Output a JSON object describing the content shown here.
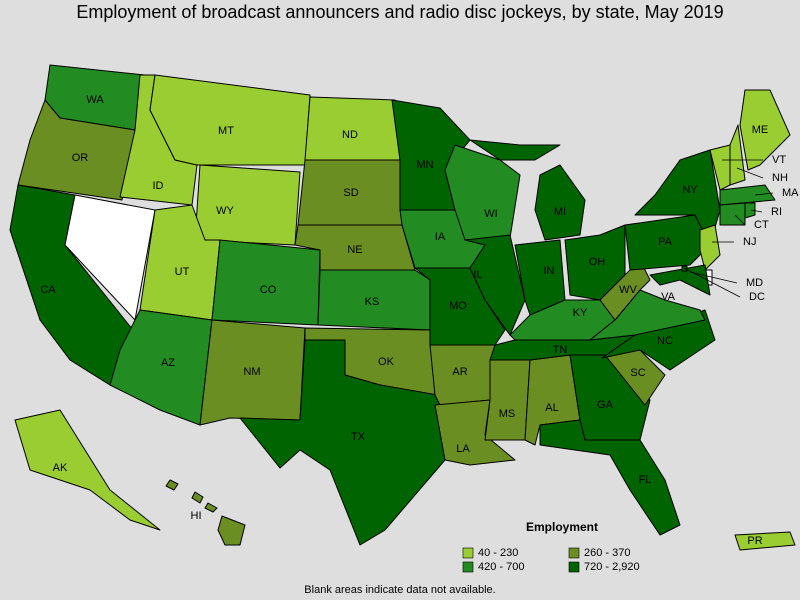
{
  "title": "Employment of broadcast announcers and radio disc jockeys, by state, May 2019",
  "legend": {
    "title": "Employment",
    "items": [
      {
        "label": "40 - 230",
        "color": "#9acd32"
      },
      {
        "label": "260 - 370",
        "color": "#6b8e23"
      },
      {
        "label": "420 - 700",
        "color": "#228b22"
      },
      {
        "label": "720 - 2,920",
        "color": "#006400"
      }
    ]
  },
  "states": [
    {
      "label": "WA",
      "class": 2
    },
    {
      "label": "OR",
      "class": 1
    },
    {
      "label": "CA",
      "class": 3
    },
    {
      "class": null
    },
    {
      "label": "ID",
      "class": 0
    },
    {
      "label": "MT",
      "class": 0
    },
    {
      "label": "WY",
      "class": 0
    },
    {
      "label": "UT",
      "class": 0
    },
    {
      "label": "AZ",
      "class": 2
    },
    {
      "label": "CO",
      "class": 2
    },
    {
      "label": "NM",
      "class": 1
    },
    {
      "label": "ND",
      "class": 0
    },
    {
      "label": "SD",
      "class": 1
    },
    {
      "label": "NE",
      "class": 1
    },
    {
      "label": "KS",
      "class": 2
    },
    {
      "label": "OK",
      "class": 1
    },
    {
      "label": "TX",
      "class": 3
    },
    {
      "label": "MN",
      "class": 3
    },
    {
      "label": "IA",
      "class": 2
    },
    {
      "label": "MO",
      "class": 3
    },
    {
      "label": "AR",
      "class": 1
    },
    {
      "label": "LA",
      "class": 1
    },
    {
      "label": "MS",
      "class": 1
    },
    {
      "label": "AL",
      "class": 1
    },
    {
      "label": "WI",
      "class": 2
    },
    {
      "label": "IL",
      "class": 3
    },
    {
      "label": "MI",
      "class": 3
    },
    {
      "label": "IN",
      "class": 3
    },
    {
      "label": "OH",
      "class": 3
    },
    {
      "label": "KY",
      "class": 2
    },
    {
      "label": "TN",
      "class": 3
    },
    {
      "label": "GA",
      "class": 3
    },
    {
      "label": "FL",
      "class": 3
    },
    {
      "label": "SC",
      "class": 1
    },
    {
      "label": "NC",
      "class": 3
    },
    {
      "label": "VA",
      "class": 2
    },
    {
      "label": "WV",
      "class": 1
    },
    {
      "label": "PA",
      "class": 3
    },
    {
      "label": "NY",
      "class": 3
    },
    {
      "label": "VT",
      "class": 0
    },
    {
      "label": "NH",
      "class": 0
    },
    {
      "label": "ME",
      "class": 0
    },
    {
      "label": "MA",
      "class": 2
    },
    {
      "label": "CT",
      "class": 2
    },
    {
      "label": "RI",
      "class": 2
    },
    {
      "label": "NJ",
      "class": 0
    },
    {
      "class": null
    },
    {
      "label": "MD",
      "class": 3
    },
    {
      "label": "DC",
      "class": 3
    },
    {
      "label": "AK",
      "class": 0
    },
    {
      "label": "HI",
      "class": 1
    },
    {
      "label": "PR",
      "class": 0
    }
  ],
  "note": "Blank areas indicate data not available."
}
